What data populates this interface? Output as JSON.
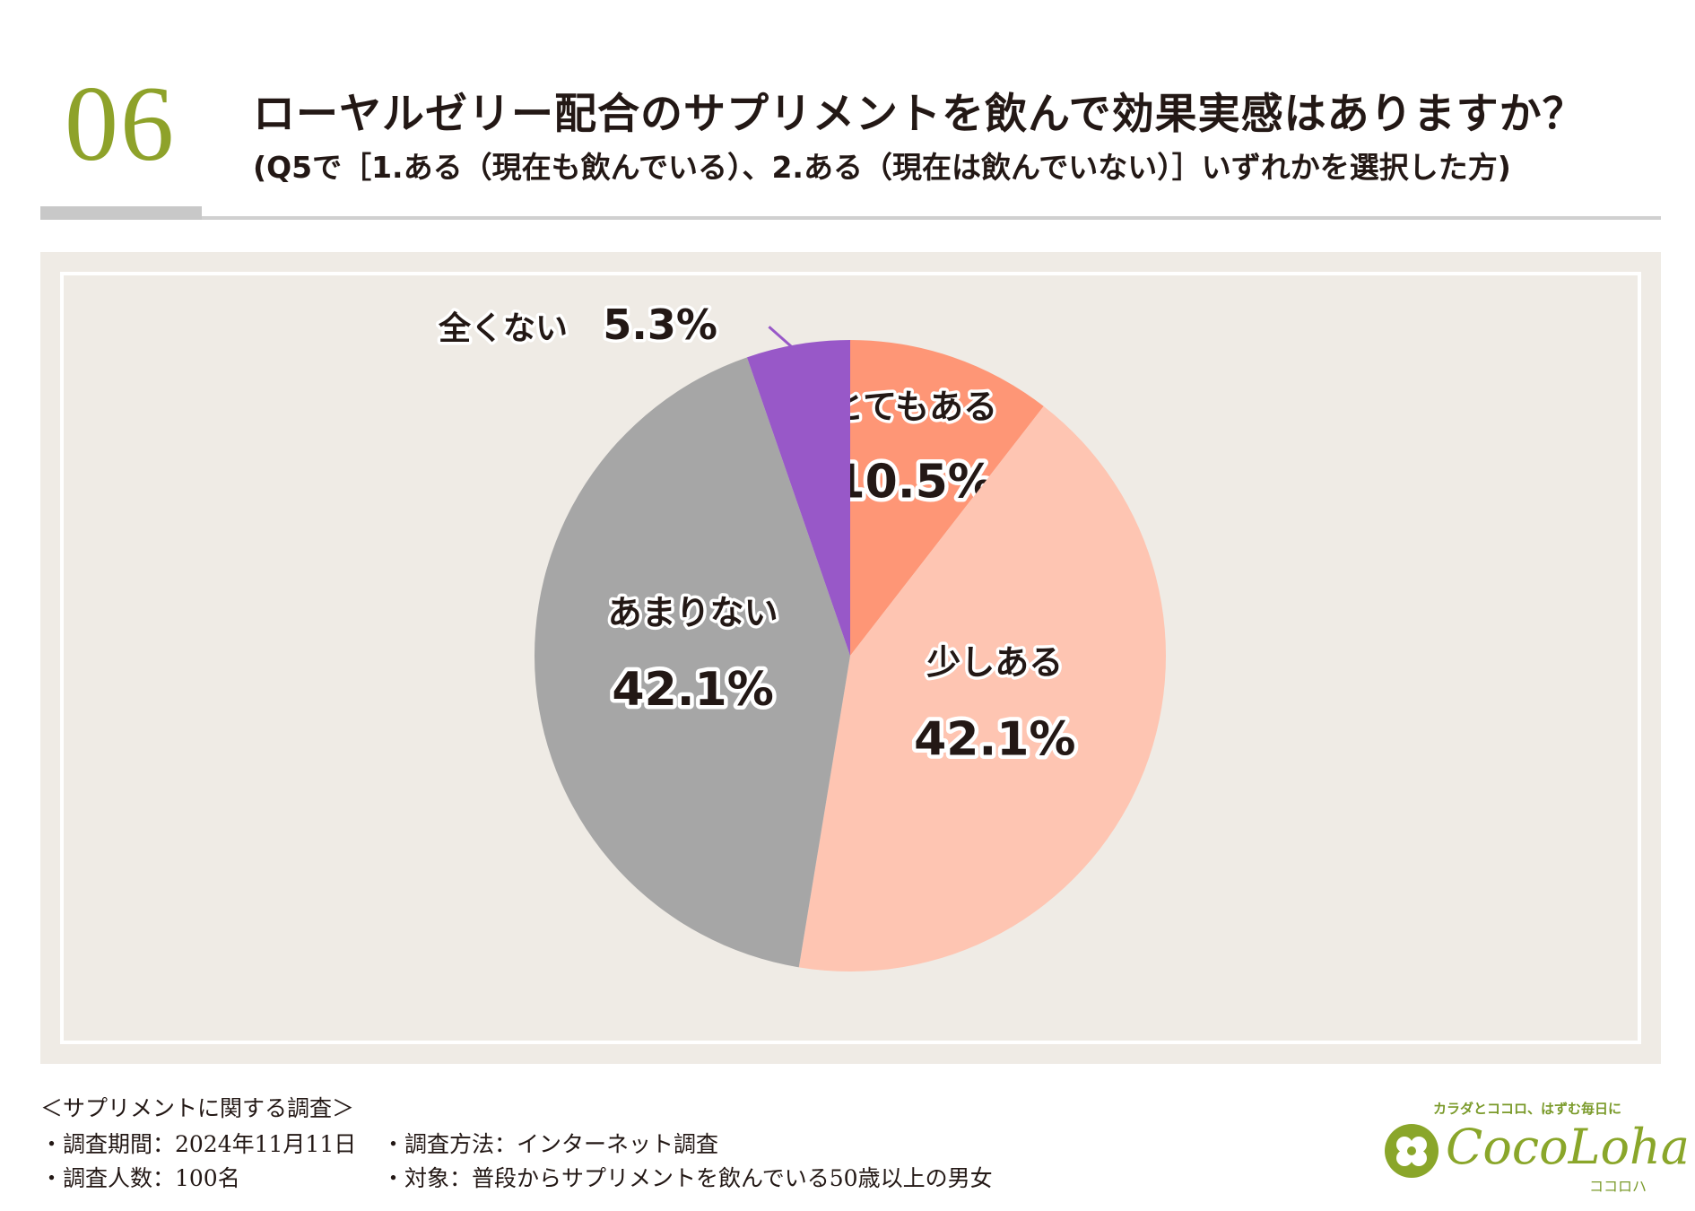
{
  "header": {
    "number": "06",
    "title": "ローヤルゼリー配合のサプリメントを飲んで効果実感はありますか？",
    "subtitle": "(Q5で［1.ある（現在も飲んでいる）、2.ある（現在は飲んでいない）］いずれかを選択した方)"
  },
  "colors": {
    "accent": "#8ea22a",
    "panel_bg": "#efebe5",
    "slice_very": "#fe9676",
    "slice_some": "#fec5b2",
    "slice_little": "#a6a6a6",
    "slice_none": "#9858c8"
  },
  "chart_data": {
    "type": "pie",
    "title": "ローヤルゼリー配合のサプリメントを飲んで効果実感はありますか？",
    "start": "12 o'clock, clockwise",
    "slices": [
      {
        "label": "とてもある",
        "value": 10.5,
        "value_label": "10.5%",
        "color": "#fe9676"
      },
      {
        "label": "少しある",
        "value": 42.1,
        "value_label": "42.1%",
        "color": "#fec5b2"
      },
      {
        "label": "あまりない",
        "value": 42.1,
        "value_label": "42.1%",
        "color": "#a6a6a6"
      },
      {
        "label": "全くない",
        "value": 5.3,
        "value_label": "5.3%",
        "color": "#9858c8"
      }
    ]
  },
  "footer": {
    "heading": "＜サプリメントに関する調査＞",
    "period": "・調査期間：2024年11月11日",
    "count": "・調査人数：100名",
    "method": "・調査方法：インターネット調査",
    "target": "・対象：普段からサプリメントを飲んでいる50歳以上の男女"
  },
  "logo": {
    "tagline": "カラダとココロ、はずむ毎日に",
    "name": "CocoLoha",
    "kana": "ココロハ"
  }
}
